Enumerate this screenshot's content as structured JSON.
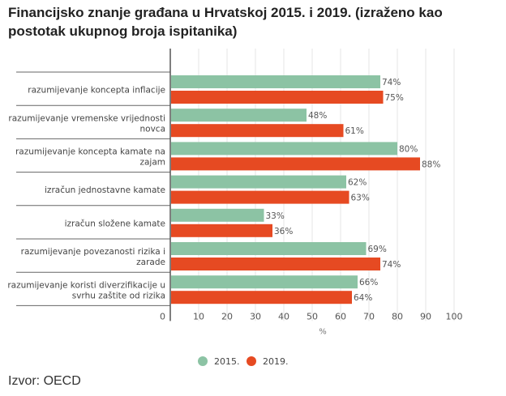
{
  "page": {
    "title": "Financijsko znanje građana u Hrvatskoj 2015. i 2019. (izraženo kao postotak ukupnog broja ispitanika)",
    "source": "Izvor: OECD"
  },
  "chart_data": {
    "type": "bar",
    "orientation": "horizontal",
    "title": "Financijsko znanje građana u Hrvatskoj 2015. i 2019. (izraženo kao postotak ukupnog broja ispitanika)",
    "xlabel": "%",
    "ylabel": "",
    "xlim": [
      0,
      100
    ],
    "xticks": [
      0,
      10,
      20,
      30,
      40,
      50,
      60,
      70,
      80,
      90,
      100
    ],
    "grid": true,
    "legend_position": "bottom",
    "value_suffix": "%",
    "categories": [
      [
        "razumijevanje koncepta inflacije"
      ],
      [
        "razumijevanje vremenske vrijednosti",
        "novca"
      ],
      [
        "razumijevanje koncepta kamate na",
        "zajam"
      ],
      [
        "izračun jednostavne kamate"
      ],
      [
        "izračun složene kamate"
      ],
      [
        "razumijevanje povezanosti rizika i",
        "zarade"
      ],
      [
        "razumijevanje koristi diverzifikacije u",
        "svrhu zaštite od rizika"
      ]
    ],
    "series": [
      {
        "name": "2015.",
        "color": "#8cc3a4",
        "values": [
          74,
          48,
          80,
          62,
          33,
          69,
          66
        ]
      },
      {
        "name": "2019.",
        "color": "#e64a22",
        "values": [
          75,
          61,
          88,
          63,
          36,
          74,
          64
        ]
      }
    ]
  }
}
